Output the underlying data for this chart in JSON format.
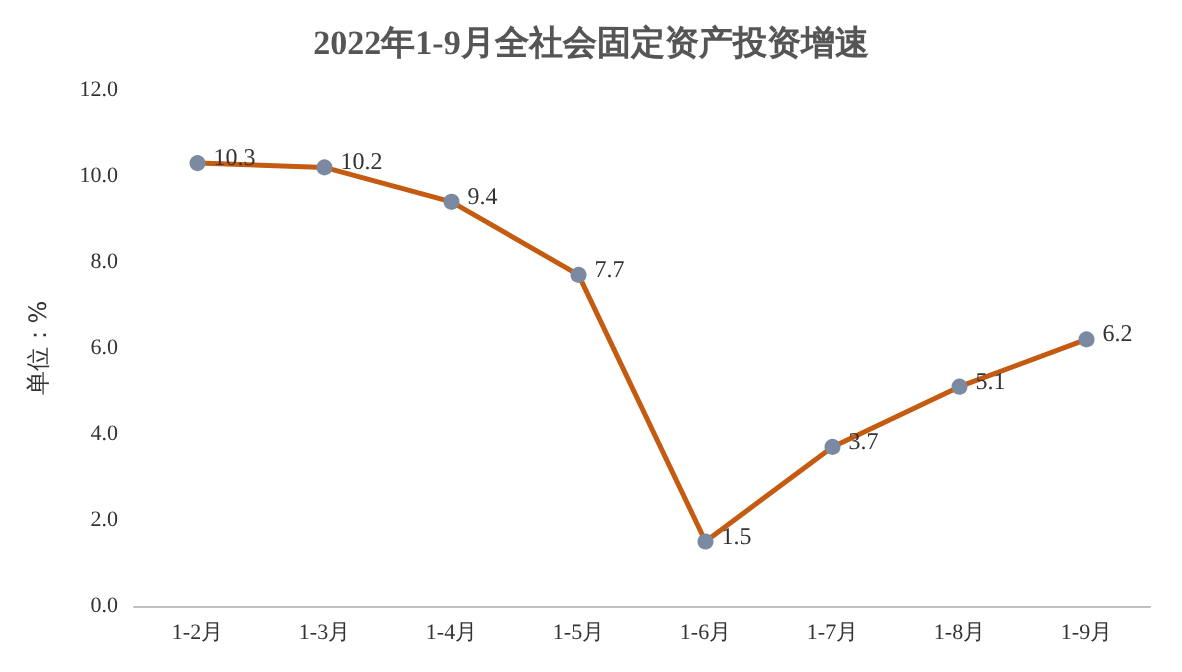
{
  "chart_data": {
    "type": "line",
    "title": "2022年1-9月全社会固定资产投资增速",
    "ylabel": "单位：%",
    "categories": [
      "1-2月",
      "1-3月",
      "1-4月",
      "1-5月",
      "1-6月",
      "1-7月",
      "1-8月",
      "1-9月"
    ],
    "series": [
      {
        "color": "#c55a11",
        "values": [
          10.3,
          10.2,
          9.4,
          7.7,
          1.5,
          3.7,
          5.1,
          6.2
        ]
      }
    ],
    "ylim": [
      0,
      12
    ],
    "yticks": [
      {
        "value": 0,
        "label": "0.0"
      },
      {
        "value": 2,
        "label": "2.0"
      },
      {
        "value": 4,
        "label": "4.0"
      },
      {
        "value": 6,
        "label": "6.0"
      },
      {
        "value": 8,
        "label": "8.0"
      },
      {
        "value": 10,
        "label": "10.0"
      },
      {
        "value": 12,
        "label": "12.0"
      }
    ],
    "grid": false,
    "marker": "circle",
    "line_style": "solid",
    "data_labels": true
  }
}
